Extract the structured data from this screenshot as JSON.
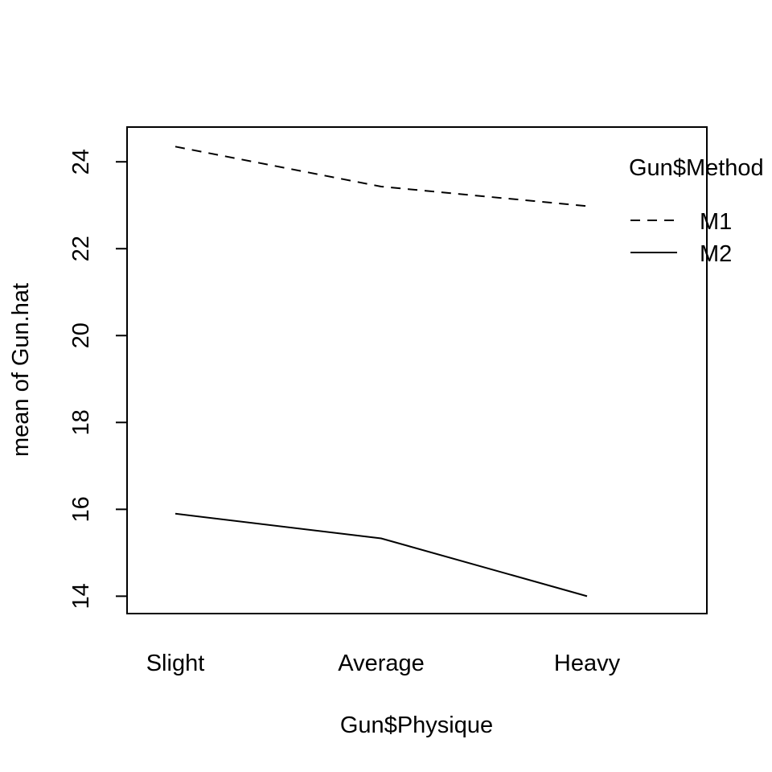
{
  "chart_data": {
    "type": "line",
    "title": "",
    "xlabel": "Gun$Physique",
    "ylabel": "mean of  Gun.hat",
    "categories": [
      "Slight",
      "Average",
      "Heavy"
    ],
    "ylim": [
      13.6,
      24.8
    ],
    "yticks": [
      14,
      16,
      18,
      20,
      22,
      24
    ],
    "yticks_labels": [
      "14",
      "16",
      "18",
      "20",
      "22",
      "24"
    ],
    "legend": {
      "title": "Gun$Method",
      "placement": "top-right"
    },
    "series": [
      {
        "name": "M1",
        "line_style": "dashed",
        "values": [
          24.35,
          23.43,
          22.98
        ]
      },
      {
        "name": "M2",
        "line_style": "solid",
        "values": [
          15.9,
          15.33,
          14.0
        ]
      }
    ]
  }
}
